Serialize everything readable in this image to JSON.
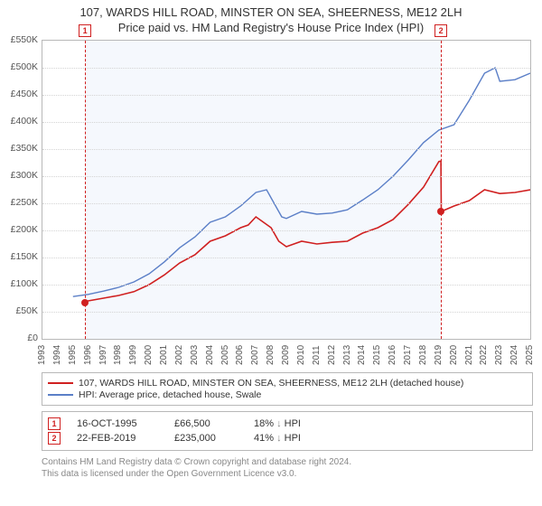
{
  "title_line1": "107, WARDS HILL ROAD, MINSTER ON SEA, SHEERNESS, ME12 2LH",
  "title_line2": "Price paid vs. HM Land Registry's House Price Index (HPI)",
  "chart": {
    "type": "line",
    "background_color": "#ffffff",
    "plot_bg_color": "#f5f8fd",
    "grid_color": "#d4d4d4",
    "border_color": "#b8b8b8",
    "x_years": [
      1993,
      1994,
      1995,
      1996,
      1997,
      1998,
      1999,
      2000,
      2001,
      2002,
      2003,
      2004,
      2005,
      2006,
      2007,
      2008,
      2009,
      2010,
      2011,
      2012,
      2013,
      2014,
      2015,
      2016,
      2017,
      2018,
      2019,
      2020,
      2021,
      2022,
      2023,
      2024,
      2025
    ],
    "xlim": [
      1993,
      2025
    ],
    "plot_bg_x_range": [
      1995.79,
      2019.14
    ],
    "ylim": [
      0,
      550
    ],
    "yticks": [
      0,
      50,
      100,
      150,
      200,
      250,
      300,
      350,
      400,
      450,
      500,
      550
    ],
    "ytick_labels": [
      "£0",
      "£50K",
      "£100K",
      "£150K",
      "£200K",
      "£250K",
      "£300K",
      "£350K",
      "£400K",
      "£450K",
      "£500K",
      "£550K"
    ],
    "y_label_fontsize": 10.5,
    "x_label_fontsize": 10,
    "series": [
      {
        "name": "red",
        "label": "107, WARDS HILL ROAD, MINSTER ON SEA, SHEERNESS, ME12 2LH (detached house)",
        "color": "#d02020",
        "width": 1.6,
        "yr": [
          1995.8,
          1996,
          1997,
          1998,
          1999,
          2000,
          2001,
          2002,
          2003,
          2004,
          2005,
          2006,
          2006.5,
          2007,
          2007.5,
          2008,
          2008.5,
          2009,
          2009.5,
          2010,
          2011,
          2012,
          2013,
          2014,
          2015,
          2016,
          2017,
          2018,
          2019,
          2019.14,
          2019.16,
          2020,
          2021,
          2022,
          2023,
          2024,
          2025
        ],
        "val": [
          66.5,
          70,
          75,
          80,
          87,
          100,
          118,
          140,
          155,
          180,
          190,
          205,
          210,
          225,
          215,
          205,
          180,
          170,
          175,
          180,
          175,
          178,
          180,
          195,
          205,
          220,
          248,
          280,
          327,
          328,
          235,
          245,
          255,
          275,
          268,
          270,
          275
        ]
      },
      {
        "name": "blue",
        "label": "HPI: Average price, detached house, Swale",
        "color": "#5b7fc7",
        "width": 1.4,
        "yr": [
          1995,
          1996,
          1997,
          1998,
          1999,
          2000,
          2001,
          2002,
          2003,
          2004,
          2005,
          2006,
          2007,
          2007.7,
          2008,
          2008.7,
          2009,
          2010,
          2011,
          2012,
          2013,
          2014,
          2015,
          2016,
          2017,
          2018,
          2019,
          2020,
          2021,
          2022,
          2022.7,
          2023,
          2024,
          2025
        ],
        "val": [
          78,
          82,
          88,
          95,
          105,
          120,
          142,
          168,
          188,
          215,
          225,
          245,
          270,
          275,
          260,
          225,
          222,
          235,
          230,
          232,
          238,
          256,
          275,
          300,
          330,
          362,
          385,
          395,
          440,
          490,
          500,
          475,
          478,
          490
        ]
      }
    ],
    "sale_markers": [
      {
        "num": "1",
        "year": 1995.79,
        "value": 66.5
      },
      {
        "num": "2",
        "year": 2019.14,
        "value": 235
      }
    ]
  },
  "legend": {
    "red_label": "107, WARDS HILL ROAD, MINSTER ON SEA, SHEERNESS, ME12 2LH (detached house)",
    "blue_label": "HPI: Average price, detached house, Swale"
  },
  "sales": [
    {
      "num": "1",
      "date": "16-OCT-1995",
      "price": "£66,500",
      "pct": "18%",
      "dir": "↓",
      "ref": "HPI"
    },
    {
      "num": "2",
      "date": "22-FEB-2019",
      "price": "£235,000",
      "pct": "41%",
      "dir": "↓",
      "ref": "HPI"
    }
  ],
  "license_line1": "Contains HM Land Registry data © Crown copyright and database right 2024.",
  "license_line2": "This data is licensed under the Open Government Licence v3.0."
}
